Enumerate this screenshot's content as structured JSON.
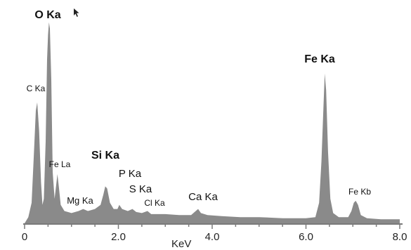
{
  "chart_data": {
    "type": "area",
    "title": "",
    "xlabel": "KeV",
    "ylabel": "",
    "xlim": [
      0,
      8
    ],
    "ylim": [
      0,
      100
    ],
    "x_ticks": [
      "0",
      "2.0",
      "4.0",
      "6.0",
      "8.0"
    ],
    "x_tick_values": [
      0,
      2,
      4,
      6,
      8
    ],
    "fill_color": "#8a8a8a",
    "background": "#ffffff",
    "baseline": 3,
    "background_decay": [
      [
        0.0,
        3
      ],
      [
        1.0,
        9
      ],
      [
        2.0,
        8
      ],
      [
        3.0,
        6
      ],
      [
        4.0,
        4
      ],
      [
        5.0,
        3
      ],
      [
        6.0,
        2
      ],
      [
        7.5,
        1.5
      ],
      [
        8.0,
        1.5
      ]
    ],
    "peaks": [
      {
        "label": "C Ka",
        "x": 0.28,
        "y": 56,
        "bold": false
      },
      {
        "label": "O Ka",
        "x": 0.52,
        "y": 97,
        "bold": true
      },
      {
        "label": "Fe La",
        "x": 0.7,
        "y": 24,
        "bold": false
      },
      {
        "label": "Mg Ka",
        "x": 1.25,
        "y": 5,
        "bold": false
      },
      {
        "label": "Si Ka",
        "x": 1.74,
        "y": 17,
        "bold": true
      },
      {
        "label": "P Ka",
        "x": 2.01,
        "y": 7,
        "bold": false
      },
      {
        "label": "S Ka",
        "x": 2.31,
        "y": 6,
        "bold": false
      },
      {
        "label": "Cl Ka",
        "x": 2.62,
        "y": 5,
        "bold": false
      },
      {
        "label": "Ca Ka",
        "x": 3.69,
        "y": 6,
        "bold": false
      },
      {
        "label": "Fe Ka",
        "x": 6.4,
        "y": 73,
        "bold": true
      },
      {
        "label": "Fe Kb",
        "x": 7.06,
        "y": 10,
        "bold": false
      }
    ],
    "spectrum": [
      [
        0.0,
        0
      ],
      [
        0.08,
        3
      ],
      [
        0.15,
        10
      ],
      [
        0.2,
        35
      ],
      [
        0.24,
        55
      ],
      [
        0.27,
        59
      ],
      [
        0.31,
        45
      ],
      [
        0.35,
        20
      ],
      [
        0.38,
        9
      ],
      [
        0.41,
        12
      ],
      [
        0.45,
        40
      ],
      [
        0.48,
        80
      ],
      [
        0.5,
        92
      ],
      [
        0.52,
        98
      ],
      [
        0.54,
        95
      ],
      [
        0.57,
        70
      ],
      [
        0.6,
        25
      ],
      [
        0.64,
        12
      ],
      [
        0.68,
        20
      ],
      [
        0.7,
        24
      ],
      [
        0.73,
        18
      ],
      [
        0.77,
        9
      ],
      [
        0.85,
        6
      ],
      [
        1.0,
        5
      ],
      [
        1.15,
        6
      ],
      [
        1.25,
        7
      ],
      [
        1.35,
        6
      ],
      [
        1.5,
        7
      ],
      [
        1.62,
        9
      ],
      [
        1.68,
        14
      ],
      [
        1.72,
        18
      ],
      [
        1.76,
        17
      ],
      [
        1.82,
        10
      ],
      [
        1.9,
        7
      ],
      [
        1.98,
        7
      ],
      [
        2.02,
        9
      ],
      [
        2.08,
        7
      ],
      [
        2.2,
        6
      ],
      [
        2.3,
        7
      ],
      [
        2.38,
        5.5
      ],
      [
        2.5,
        5
      ],
      [
        2.62,
        6
      ],
      [
        2.7,
        4.5
      ],
      [
        3.0,
        4.5
      ],
      [
        3.3,
        4
      ],
      [
        3.55,
        4
      ],
      [
        3.65,
        6
      ],
      [
        3.7,
        7
      ],
      [
        3.76,
        5
      ],
      [
        3.9,
        4
      ],
      [
        4.2,
        3.5
      ],
      [
        4.6,
        3
      ],
      [
        5.0,
        3
      ],
      [
        5.5,
        2.5
      ],
      [
        6.0,
        2.5
      ],
      [
        6.2,
        3
      ],
      [
        6.28,
        10
      ],
      [
        6.33,
        30
      ],
      [
        6.37,
        55
      ],
      [
        6.4,
        73
      ],
      [
        6.43,
        65
      ],
      [
        6.47,
        35
      ],
      [
        6.52,
        12
      ],
      [
        6.58,
        5
      ],
      [
        6.7,
        3
      ],
      [
        6.9,
        3
      ],
      [
        6.97,
        6
      ],
      [
        7.02,
        10
      ],
      [
        7.06,
        11
      ],
      [
        7.11,
        9
      ],
      [
        7.17,
        4
      ],
      [
        7.3,
        2.5
      ],
      [
        7.6,
        2
      ],
      [
        8.0,
        2
      ]
    ]
  }
}
